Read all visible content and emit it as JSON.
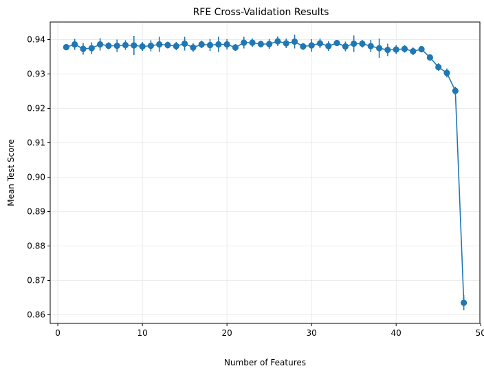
{
  "chart_data": {
    "type": "line",
    "title": "RFE Cross-Validation Results",
    "xlabel": "Number of Features",
    "ylabel": "Mean Test Score",
    "xlim": [
      -0.9,
      49.9
    ],
    "ylim": [
      0.8575,
      0.9451
    ],
    "grid": true,
    "color": "#1f77b4",
    "x_ticks": [
      0,
      10,
      20,
      30,
      40,
      50
    ],
    "y_ticks": [
      0.86,
      0.87,
      0.88,
      0.89,
      0.9,
      0.91,
      0.92,
      0.93,
      0.94
    ],
    "x_tick_labels": [
      "0",
      "10",
      "20",
      "30",
      "40",
      "50"
    ],
    "y_tick_labels": [
      "0.86",
      "0.87",
      "0.88",
      "0.89",
      "0.90",
      "0.91",
      "0.92",
      "0.93",
      "0.94"
    ],
    "series": [
      {
        "x": [
          1,
          2,
          3,
          4,
          5,
          6,
          7,
          8,
          9,
          10,
          11,
          12,
          13,
          14,
          15,
          16,
          17,
          18,
          19,
          20,
          21,
          22,
          23,
          24,
          25,
          26,
          27,
          28,
          29,
          30,
          31,
          32,
          33,
          34,
          35,
          36,
          37,
          38,
          39,
          40,
          41,
          42,
          43,
          44,
          45,
          46,
          47,
          48
        ],
        "y": [
          0.9378,
          0.9386,
          0.9373,
          0.9375,
          0.9386,
          0.9382,
          0.9382,
          0.9384,
          0.9383,
          0.938,
          0.9382,
          0.9386,
          0.9384,
          0.9381,
          0.9388,
          0.9377,
          0.9386,
          0.9384,
          0.9386,
          0.9386,
          0.9377,
          0.9391,
          0.9391,
          0.9387,
          0.9387,
          0.9395,
          0.9389,
          0.9394,
          0.938,
          0.9383,
          0.9389,
          0.9381,
          0.939,
          0.938,
          0.9388,
          0.9388,
          0.9381,
          0.9375,
          0.937,
          0.9371,
          0.9373,
          0.9366,
          0.9372,
          0.9348,
          0.932,
          0.9303,
          0.9251,
          0.8635
        ],
        "err": [
          0.0008,
          0.0016,
          0.0017,
          0.0017,
          0.0018,
          0.001,
          0.0018,
          0.0014,
          0.0028,
          0.0013,
          0.0016,
          0.0022,
          0.001,
          0.0012,
          0.002,
          0.0012,
          0.0011,
          0.0017,
          0.0022,
          0.0015,
          0.001,
          0.0017,
          0.0012,
          0.001,
          0.0014,
          0.0014,
          0.0014,
          0.002,
          0.001,
          0.0018,
          0.0014,
          0.0014,
          0.0006,
          0.0014,
          0.0024,
          0.0011,
          0.0018,
          0.0028,
          0.0018,
          0.0013,
          0.0011,
          0.0011,
          0.0005,
          0.0005,
          0.0011,
          0.0013,
          0.0012,
          0.0022
        ]
      }
    ]
  }
}
